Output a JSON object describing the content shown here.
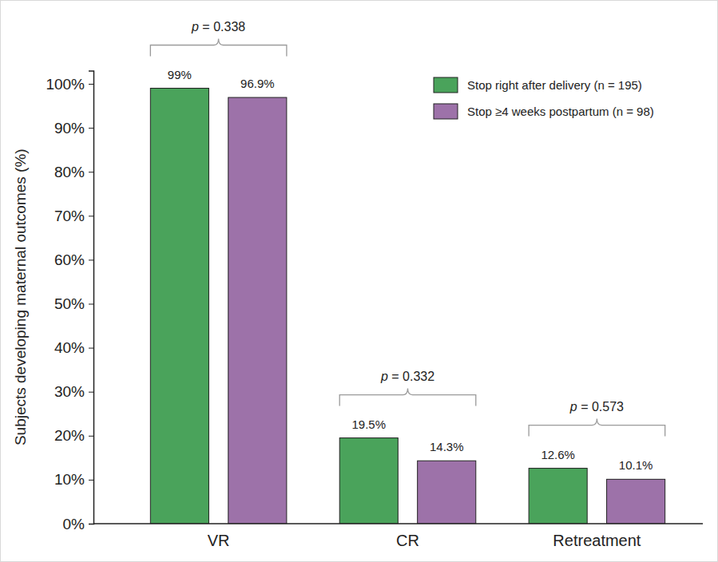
{
  "chart_data": {
    "type": "bar",
    "y_label": "Subjects developing maternal outcomes (%)",
    "categories": [
      "VR",
      "CR",
      "Retreatment"
    ],
    "series": [
      {
        "name": "Stop right after delivery (n = 195)",
        "color": "#4aa35b",
        "values": [
          99,
          19.5,
          12.6
        ],
        "value_labels": [
          "99%",
          "19.5%",
          "12.6%"
        ]
      },
      {
        "name": "Stop ≥4 weeks postpartum (n = 98)",
        "color": "#9d72a9",
        "values": [
          96.9,
          14.3,
          10.1
        ],
        "value_labels": [
          "96.9%",
          "14.3%",
          "10.1%"
        ]
      }
    ],
    "ylim": [
      0,
      103
    ],
    "yticks": [
      {
        "value": 0,
        "label": "0%"
      },
      {
        "value": 10,
        "label": "10%"
      },
      {
        "value": 20,
        "label": "20%"
      },
      {
        "value": 30,
        "label": "30%"
      },
      {
        "value": 40,
        "label": "40%"
      },
      {
        "value": 50,
        "label": "50%"
      },
      {
        "value": 60,
        "label": "60%"
      },
      {
        "value": 70,
        "label": "70%"
      },
      {
        "value": 80,
        "label": "80%"
      },
      {
        "value": 90,
        "label": "90%"
      },
      {
        "value": 100,
        "label": "100%"
      }
    ],
    "annotations": [
      {
        "text": "p = 0.338",
        "category": "VR"
      },
      {
        "text": "p = 0.332",
        "category": "CR"
      },
      {
        "text": "p = 0.573",
        "category": "Retreatment"
      }
    ],
    "data_labels": true,
    "legend": "top-right",
    "grid": false
  }
}
